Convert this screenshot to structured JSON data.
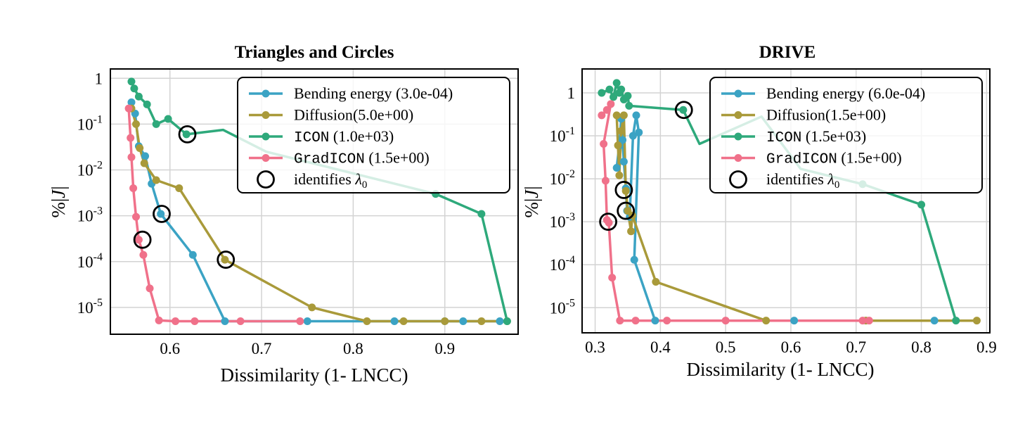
{
  "chart_data": [
    {
      "type": "line",
      "title": "Triangles and Circles",
      "xlabel": "Dissimilarity (1- LNCC)",
      "ylabel": "%|J|",
      "yscale": "log",
      "xlim": [
        0.535,
        0.98
      ],
      "ylim": [
        2.6e-06,
        1.6
      ],
      "xticks": [
        0.6,
        0.7,
        0.8,
        0.9
      ],
      "xtick_labels": [
        "0.6",
        "0.7",
        "0.8",
        "0.9"
      ],
      "yticks": [
        1e-05,
        0.0001,
        0.001,
        0.01,
        0.1,
        1
      ],
      "ytick_labels": [
        {
          "base": "10",
          "exp": "-5"
        },
        {
          "base": "10",
          "exp": "-4"
        },
        {
          "base": "10",
          "exp": "-3"
        },
        {
          "base": "10",
          "exp": "-2"
        },
        {
          "base": "10",
          "exp": "-1"
        },
        {
          "base": "1",
          "exp": ""
        }
      ],
      "grid": true,
      "legend_position": "top-right",
      "series": [
        {
          "name": "Bending energy",
          "param": "(3.0e-04)",
          "mono": false,
          "color": "#3ba3c4",
          "x": [
            0.558,
            0.562,
            0.566,
            0.573,
            0.58,
            0.59,
            0.625,
            0.66,
            0.75,
            0.845,
            0.9,
            0.92,
            0.96
          ],
          "y": [
            0.3,
            0.17,
            0.033,
            0.02,
            0.005,
            0.0011,
            0.00014,
            5e-06,
            5e-06,
            5e-06,
            5e-06,
            5e-06,
            5e-06
          ]
        },
        {
          "name": "Diffusion",
          "param": "(5.0e+00)",
          "mono": false,
          "color": "#a99a3a",
          "x": [
            0.558,
            0.563,
            0.567,
            0.572,
            0.585,
            0.61,
            0.66,
            0.755,
            0.815,
            0.855,
            0.9,
            0.94,
            0.968
          ],
          "y": [
            0.22,
            0.1,
            0.03,
            0.014,
            0.006,
            0.004,
            0.00011,
            1e-05,
            5e-06,
            5e-06,
            5e-06,
            5e-06,
            5e-06
          ]
        },
        {
          "name": "ICON",
          "param": "(1.0e+03)",
          "mono": true,
          "color": "#2ea97b",
          "x": [
            0.558,
            0.561,
            0.566,
            0.575,
            0.585,
            0.598,
            0.618,
            0.658,
            0.705,
            0.89,
            0.94,
            0.968
          ],
          "y": [
            0.85,
            0.6,
            0.4,
            0.27,
            0.1,
            0.13,
            0.06,
            0.075,
            0.025,
            0.003,
            0.0011,
            5e-06
          ],
          "hidden": [
            [
              0.658,
              0.075
            ],
            [
              0.705,
              0.025
            ]
          ]
        },
        {
          "name": "GradICON",
          "param": "(1.5e+00)",
          "mono": true,
          "color": "#f0718a",
          "x": [
            0.555,
            0.557,
            0.558,
            0.56,
            0.563,
            0.566,
            0.571,
            0.578,
            0.588,
            0.606,
            0.627,
            0.677,
            0.742
          ],
          "y": [
            0.22,
            0.05,
            0.019,
            0.004,
            0.00095,
            0.0003,
            0.00014,
            2.6e-05,
            5.2e-06,
            5e-06,
            5e-06,
            5e-06,
            5e-06
          ]
        }
      ],
      "circles": [
        [
          0.619,
          0.06
        ],
        [
          0.591,
          0.0011
        ],
        [
          0.57,
          0.0003
        ],
        [
          0.661,
          0.00011
        ]
      ],
      "legend_marker_label": "identifies",
      "legend_marker_symbol": "λ",
      "legend_marker_sub": "0"
    },
    {
      "type": "line",
      "title": "DRIVE",
      "xlabel": "Dissimilarity (1- LNCC)",
      "ylabel": "%|J|",
      "yscale": "log",
      "xlim": [
        0.28,
        0.905
      ],
      "ylim": [
        2.6e-06,
        3.6
      ],
      "xticks": [
        0.3,
        0.4,
        0.5,
        0.6,
        0.7,
        0.8,
        0.9
      ],
      "xtick_labels": [
        "0.3",
        "0.4",
        "0.5",
        "0.6",
        "0.7",
        "0.8",
        "0.9"
      ],
      "yticks": [
        1e-05,
        0.0001,
        0.001,
        0.01,
        0.1,
        1
      ],
      "ytick_labels": [
        {
          "base": "10",
          "exp": "-5"
        },
        {
          "base": "10",
          "exp": "-4"
        },
        {
          "base": "10",
          "exp": "-3"
        },
        {
          "base": "10",
          "exp": "-2"
        },
        {
          "base": "10",
          "exp": "-1"
        },
        {
          "base": "1",
          "exp": ""
        }
      ],
      "grid": true,
      "legend_position": "top-right",
      "series": [
        {
          "name": "Bending energy",
          "param": "(6.0e-04)",
          "mono": false,
          "color": "#3ba3c4",
          "x": [
            0.333,
            0.337,
            0.34,
            0.342,
            0.344,
            0.347,
            0.349,
            0.353,
            0.358,
            0.363,
            0.367,
            0.36,
            0.392,
            0.605,
            0.82
          ],
          "y": [
            0.018,
            0.06,
            0.25,
            0.08,
            0.025,
            0.006,
            0.0018,
            0.0013,
            0.1,
            0.3,
            0.12,
            0.00013,
            5e-06,
            5e-06,
            5e-06
          ]
        },
        {
          "name": "Diffusion",
          "param": "(1.5e+00)",
          "mono": false,
          "color": "#a99a3a",
          "x": [
            0.333,
            0.335,
            0.337,
            0.34,
            0.344,
            0.347,
            0.35,
            0.355,
            0.357,
            0.393,
            0.562,
            0.715,
            0.885
          ],
          "y": [
            0.3,
            0.06,
            0.012,
            0.13,
            0.3,
            0.0052,
            0.0018,
            0.0006,
            0.0014,
            4e-05,
            5e-06,
            5e-06,
            5e-06
          ]
        },
        {
          "name": "ICON",
          "param": "(1.5e+03)",
          "mono": true,
          "color": "#2ea97b",
          "x": [
            0.31,
            0.322,
            0.328,
            0.333,
            0.337,
            0.34,
            0.344,
            0.35,
            0.352,
            0.435,
            0.46,
            0.555,
            0.615,
            0.71,
            0.8,
            0.853
          ],
          "y": [
            1.0,
            1.2,
            0.8,
            1.7,
            1.0,
            1.2,
            0.7,
            0.85,
            0.5,
            0.4,
            0.065,
            0.28,
            0.017,
            0.0075,
            0.0025,
            5e-06
          ],
          "hidden": [
            [
              0.46,
              0.065
            ],
            [
              0.555,
              0.28
            ],
            [
              0.615,
              0.017
            ]
          ]
        },
        {
          "name": "GradICON",
          "param": "(1.5e+00)",
          "mono": true,
          "color": "#f0718a",
          "x": [
            0.31,
            0.318,
            0.324,
            0.313,
            0.316,
            0.318,
            0.321,
            0.326,
            0.338,
            0.362,
            0.41,
            0.5,
            0.71,
            0.72
          ],
          "y": [
            0.3,
            0.4,
            0.55,
            0.065,
            0.009,
            0.0011,
            0.00095,
            5e-05,
            5e-06,
            5e-06,
            5e-06,
            5e-06,
            5e-06,
            5e-06
          ]
        }
      ],
      "circles": [
        [
          0.436,
          0.4
        ],
        [
          0.344,
          0.0055
        ],
        [
          0.347,
          0.0018
        ],
        [
          0.32,
          0.001
        ]
      ],
      "legend_marker_label": "identifies",
      "legend_marker_symbol": "λ",
      "legend_marker_sub": "0"
    }
  ]
}
